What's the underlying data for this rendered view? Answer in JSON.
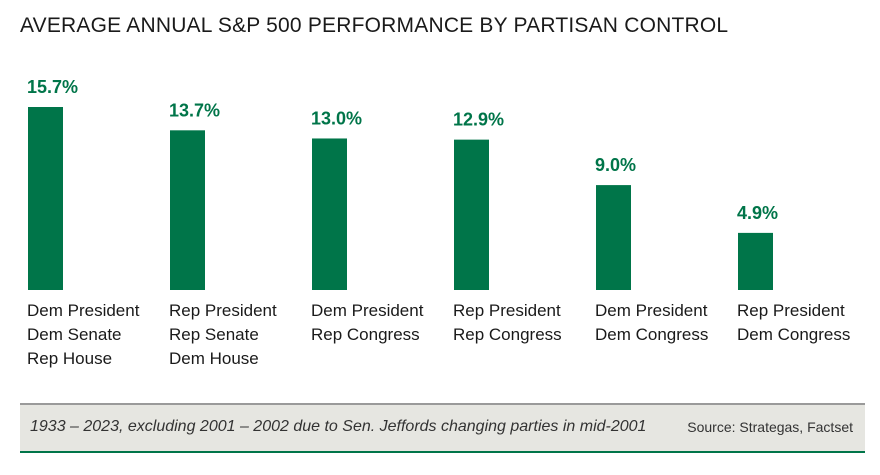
{
  "colors": {
    "bar": "#007549",
    "value_label": "#007549",
    "footer_bg": "#e6e6e1",
    "footer_rule": "#007549"
  },
  "footer": {
    "note": "1933 – 2023, excluding 2001 – 2002 due to Sen. Jeffords changing parties in mid-2001",
    "source": "Source: Strategas, Factset"
  },
  "chart_data": {
    "type": "bar",
    "title": "AVERAGE ANNUAL S&P 500 PERFORMANCE BY PARTISAN CONTROL",
    "xlabel": "",
    "ylabel": "",
    "ylim": [
      0,
      15.7
    ],
    "grid": false,
    "legend": "none",
    "unit": "%",
    "categories": [
      [
        "Dem President",
        "Dem Senate",
        "Rep House"
      ],
      [
        "Rep President",
        "Rep Senate",
        "Dem House"
      ],
      [
        "Dem President",
        "Rep Congress"
      ],
      [
        "Rep President",
        "Rep Congress"
      ],
      [
        "Dem President",
        "Dem Congress"
      ],
      [
        "Rep President",
        "Dem Congress"
      ]
    ],
    "values": [
      15.7,
      13.7,
      13.0,
      12.9,
      9.0,
      4.9
    ],
    "value_labels": [
      "15.7%",
      "13.7%",
      "13.0%",
      "12.9%",
      "9.0%",
      "4.9%"
    ]
  }
}
